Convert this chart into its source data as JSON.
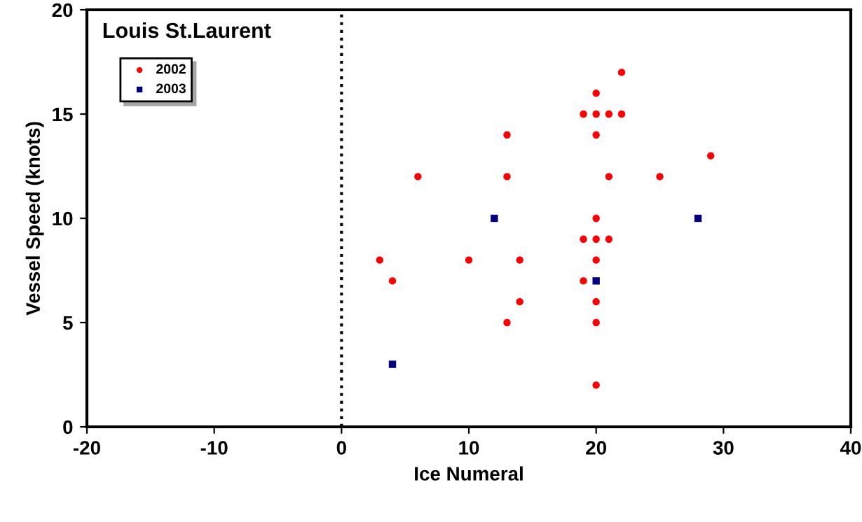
{
  "chart_data": {
    "type": "scatter",
    "title": "Louis St.Laurent",
    "xlabel": "Ice Numeral",
    "ylabel": "Vessel Speed (knots)",
    "xlim": [
      -20,
      40
    ],
    "xticks": [
      -20,
      -10,
      0,
      10,
      20,
      30,
      40
    ],
    "ylim": [
      0,
      20
    ],
    "yticks": [
      0,
      5,
      10,
      15,
      20
    ],
    "grid": false,
    "legend": "top left",
    "ref_lines": [
      {
        "axis": "x",
        "value": 0,
        "color": "#000000",
        "line_style": "dotted"
      }
    ],
    "series": [
      {
        "name": "2002",
        "color": "#ff0000",
        "marker": "circle",
        "x": [
          3,
          4,
          6,
          10,
          13,
          13,
          13,
          14,
          14,
          19,
          19,
          19,
          20,
          20,
          20,
          20,
          20,
          20,
          20,
          20,
          20,
          21,
          21,
          21,
          22,
          22,
          25,
          29
        ],
        "values": [
          8,
          7,
          12,
          8,
          14,
          12,
          5,
          8,
          6,
          15,
          9,
          7,
          16,
          15,
          14,
          10,
          9,
          8,
          6,
          5,
          2,
          15,
          12,
          9,
          17,
          15,
          12,
          13
        ]
      },
      {
        "name": "2003",
        "color": "#000080",
        "marker": "square",
        "x": [
          4,
          12,
          20,
          28
        ],
        "values": [
          3,
          10,
          7,
          10
        ]
      }
    ]
  }
}
